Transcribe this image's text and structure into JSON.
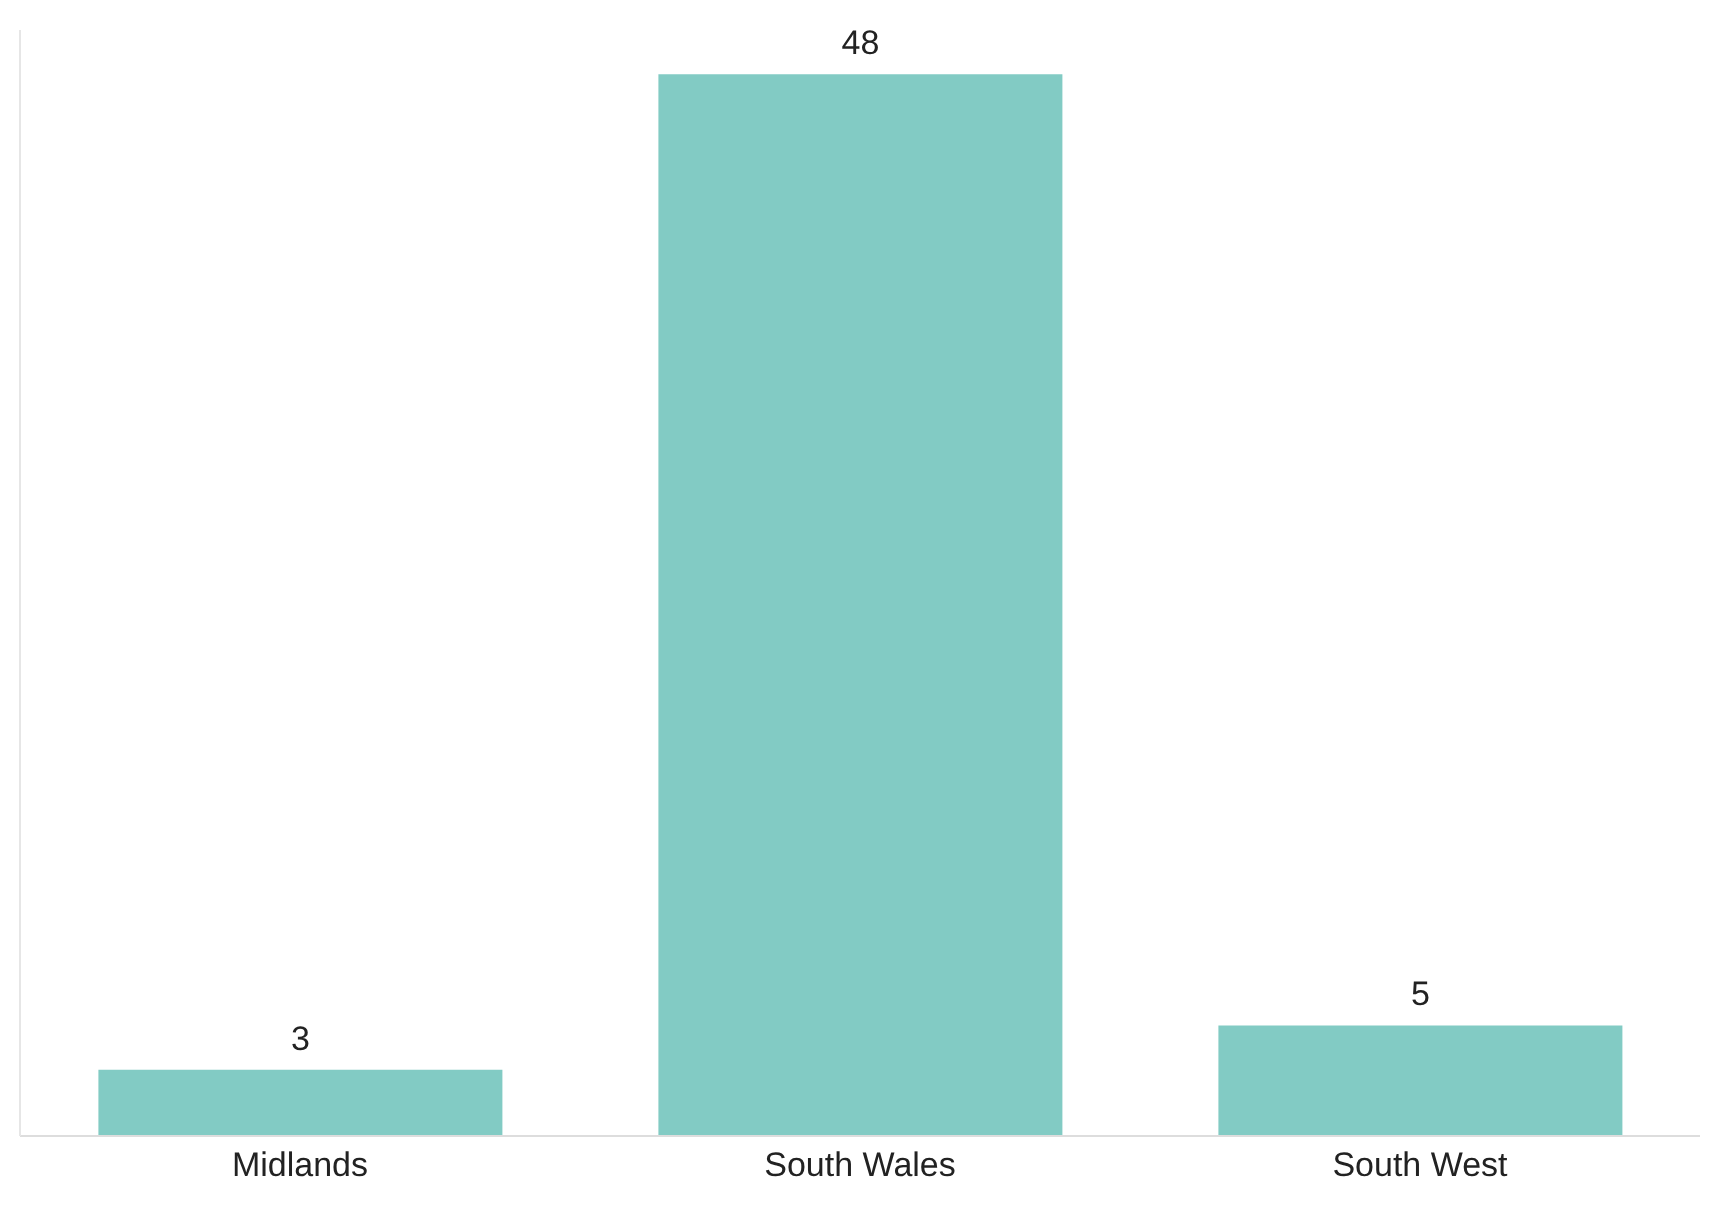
{
  "chart_data": {
    "type": "bar",
    "categories": [
      "Midlands",
      "South Wales",
      "South West"
    ],
    "values": [
      3,
      48,
      5
    ],
    "color": "#82cbc4",
    "ylim": [
      0,
      50
    ],
    "data_labels": true,
    "tick_labels": "x",
    "grid": false,
    "legend": false
  }
}
